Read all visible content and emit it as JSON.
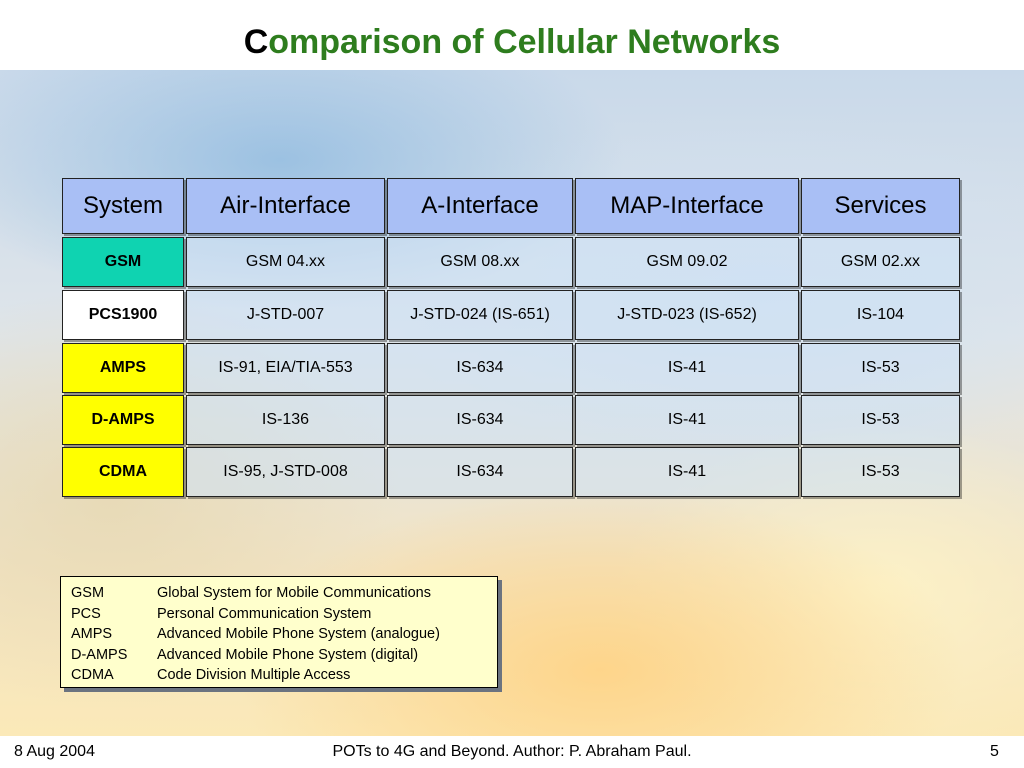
{
  "title": {
    "first_letter": "C",
    "rest": "omparison of Cellular Networks"
  },
  "table": {
    "headers": [
      "System",
      "Air-Interface",
      "A-Interface",
      "MAP-Interface",
      "Services"
    ],
    "rows": [
      {
        "system": "GSM",
        "cells": [
          "GSM 04.xx",
          "GSM 08.xx",
          "GSM 09.02",
          "GSM 02.xx"
        ]
      },
      {
        "system": "PCS1900",
        "cells": [
          "J-STD-007",
          "J-STD-024 (IS-651)",
          "J-STD-023 (IS-652)",
          "IS-104"
        ]
      },
      {
        "system": "AMPS",
        "cells": [
          "IS-91, EIA/TIA-553",
          "IS-634",
          "IS-41",
          "IS-53"
        ]
      },
      {
        "system": "D-AMPS",
        "cells": [
          "IS-136",
          "IS-634",
          "IS-41",
          "IS-53"
        ]
      },
      {
        "system": "CDMA",
        "cells": [
          "IS-95, J-STD-008",
          "IS-634",
          "IS-41",
          "IS-53"
        ]
      }
    ]
  },
  "legend": [
    {
      "abbr": "GSM",
      "text": "Global System for Mobile Communications"
    },
    {
      "abbr": "PCS",
      "text": "Personal Communication System"
    },
    {
      "abbr": "AMPS",
      "text": "Advanced Mobile Phone System (analogue)"
    },
    {
      "abbr": "D-AMPS",
      "text": "Advanced Mobile Phone System (digital)"
    },
    {
      "abbr": "CDMA",
      "text": "Code Division Multiple Access"
    }
  ],
  "footer": {
    "date": "8 Aug 2004",
    "center": "POTs to 4G and Beyond. Author: P. Abraham Paul.",
    "page": "5"
  },
  "colors": {
    "title": "#2e7d1e",
    "header_bg": "#a9bff5",
    "gsm_bg": "#0fd3b1",
    "yellow_bg": "#ffff00",
    "legend_bg": "#ffffcc"
  }
}
